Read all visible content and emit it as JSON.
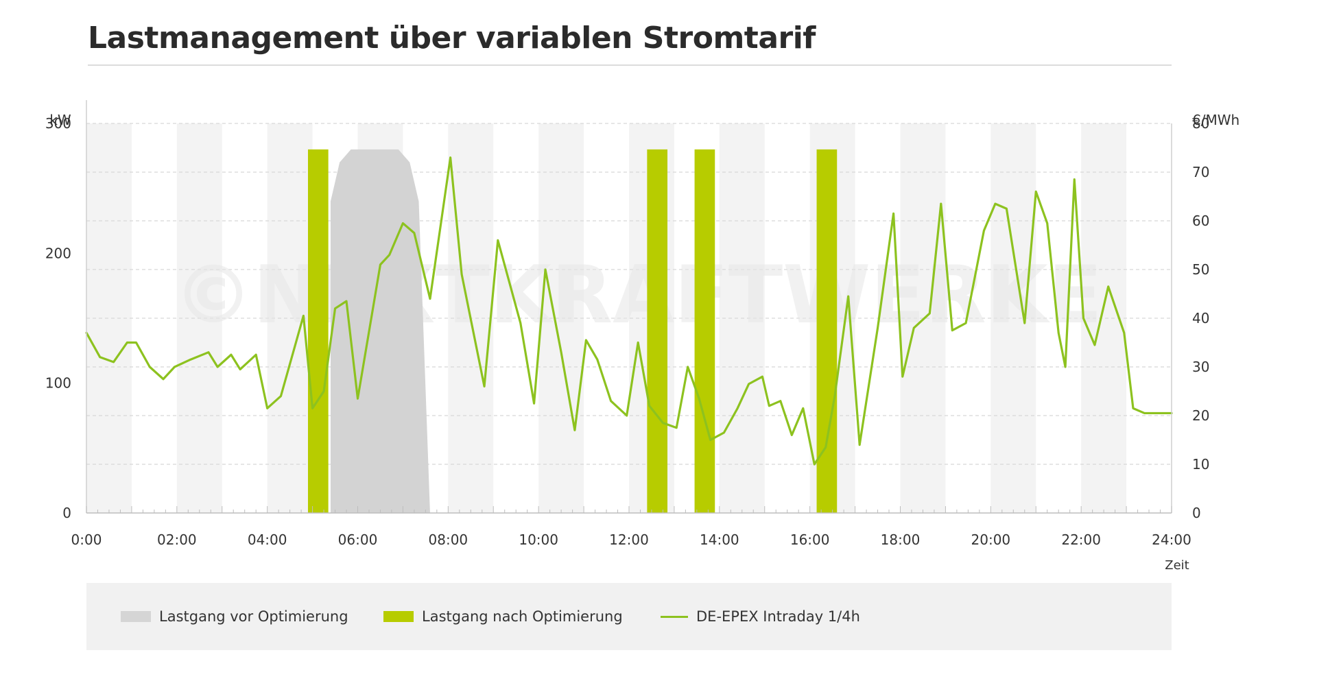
{
  "title": "Lastmanagement über variablen Stromtarif",
  "watermark": "©NEXTKRAFTWERKE",
  "colors": {
    "bar_after": "#b7cc00",
    "area_before": "#d3d3d3",
    "price_line": "#8dc21f",
    "band": "#f3f3f3",
    "grid": "#d8d8d8",
    "axis_text": "#333333"
  },
  "legend": [
    {
      "label": "Lastgang vor Optimierung",
      "swatch": "gray-area"
    },
    {
      "label": "Lastgang nach Optimierung",
      "swatch": "green-bar"
    },
    {
      "label": "DE-EPEX Intraday 1/4h",
      "swatch": "green-line"
    }
  ],
  "chart_data": {
    "type": "bar",
    "title": "Lastmanagement über variablen Stromtarif",
    "x_label": "Zeit",
    "y_left_label": "kW",
    "y_right_label": "€/MWh",
    "x_range": [
      0,
      24
    ],
    "y_left_range": [
      0,
      300
    ],
    "y_right_range": [
      0,
      80
    ],
    "x_ticks": [
      "0:00",
      "02:00",
      "04:00",
      "06:00",
      "08:00",
      "10:00",
      "12:00",
      "14:00",
      "16:00",
      "18:00",
      "20:00",
      "22:00",
      "24:00"
    ],
    "y_left_ticks": [
      0,
      100,
      200,
      300
    ],
    "y_right_ticks": [
      0,
      10,
      20,
      30,
      40,
      50,
      60,
      70,
      80
    ],
    "grid": "horizontal dashed",
    "legend_position": "bottom",
    "series": [
      {
        "name": "Lastgang vor Optimierung",
        "type": "area",
        "axis": "left",
        "points": [
          [
            5.4,
            0
          ],
          [
            5.4,
            240
          ],
          [
            5.6,
            270
          ],
          [
            5.85,
            280
          ],
          [
            6.9,
            280
          ],
          [
            7.15,
            270
          ],
          [
            7.35,
            240
          ],
          [
            7.6,
            0
          ]
        ]
      },
      {
        "name": "Lastgang nach Optimierung",
        "type": "bar",
        "axis": "left",
        "bars": [
          {
            "start": 4.9,
            "end": 5.35,
            "value": 280
          },
          {
            "start": 12.4,
            "end": 12.85,
            "value": 280
          },
          {
            "start": 13.45,
            "end": 13.9,
            "value": 280
          },
          {
            "start": 16.15,
            "end": 16.6,
            "value": 280
          }
        ]
      },
      {
        "name": "DE-EPEX Intraday 1/4h",
        "type": "line",
        "axis": "right",
        "x": [
          0,
          0.3,
          0.6,
          0.9,
          1.1,
          1.4,
          1.7,
          1.95,
          2.3,
          2.7,
          2.9,
          3.2,
          3.4,
          3.75,
          4.0,
          4.3,
          4.8,
          5.0,
          5.25,
          5.5,
          5.75,
          6.0,
          6.5,
          6.7,
          7.0,
          7.25,
          7.6,
          8.05,
          8.3,
          8.8,
          9.1,
          9.6,
          9.9,
          10.15,
          10.5,
          10.8,
          11.05,
          11.3,
          11.6,
          11.95,
          12.2,
          12.45,
          12.75,
          13.05,
          13.3,
          13.55,
          13.8,
          14.1,
          14.4,
          14.65,
          14.95,
          15.1,
          15.35,
          15.6,
          15.85,
          16.1,
          16.35,
          16.55,
          16.85,
          17.1,
          17.5,
          17.85,
          18.05,
          18.3,
          18.65,
          18.9,
          19.15,
          19.45,
          19.85,
          20.1,
          20.35,
          20.75,
          21.0,
          21.25,
          21.5,
          21.65,
          21.85,
          22.05,
          22.3,
          22.6,
          22.95,
          23.15,
          23.4,
          23.55,
          23.75,
          24.0
        ],
        "y": [
          37,
          32,
          31,
          35,
          35,
          30,
          27.5,
          30,
          31.5,
          33,
          30,
          32.5,
          29.5,
          32.5,
          21.5,
          24,
          40.5,
          21.5,
          25,
          42,
          43.5,
          23.5,
          51,
          53,
          59.5,
          57.5,
          44,
          73,
          49,
          26,
          56,
          39,
          22.5,
          50,
          33,
          17,
          35.5,
          31.5,
          23,
          20,
          35,
          22,
          18.5,
          17.5,
          30,
          23.5,
          15,
          16.5,
          21.5,
          26.5,
          28,
          22,
          23,
          16,
          21.5,
          10,
          13.5,
          24,
          44.5,
          14,
          38,
          61.5,
          28,
          38,
          41,
          63.5,
          37.5,
          39,
          58,
          63.5,
          62.5,
          39,
          66,
          59.5,
          37,
          30,
          68.5,
          40,
          34.5,
          46.5,
          37,
          21.5,
          20.5,
          20.5,
          20.5,
          20.5
        ]
      }
    ]
  }
}
